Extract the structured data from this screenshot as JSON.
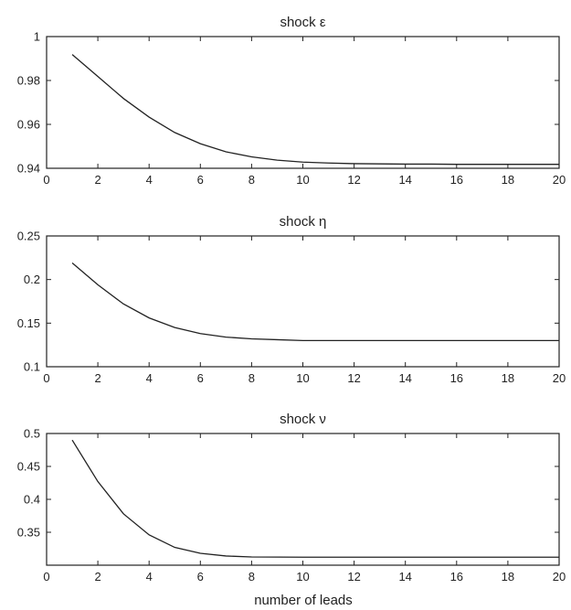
{
  "figure": {
    "xlabel": "number of leads"
  },
  "chart_data": [
    {
      "type": "line",
      "title": "shock ε",
      "xlabel": "",
      "ylabel": "",
      "xlim": [
        0,
        20
      ],
      "ylim": [
        0.94,
        1
      ],
      "xticks": [
        "0",
        "2",
        "4",
        "6",
        "8",
        "10",
        "12",
        "14",
        "16",
        "18",
        "20"
      ],
      "yticks": [
        "0.94",
        "0.96",
        "0.98",
        "1"
      ],
      "grid": false,
      "x": [
        1,
        2,
        3,
        4,
        5,
        6,
        7,
        8,
        9,
        10,
        11,
        12,
        13,
        14,
        15,
        16,
        17,
        18,
        19,
        20
      ],
      "series": [
        {
          "values": [
            0.9918,
            0.9818,
            0.9718,
            0.9633,
            0.9563,
            0.9512,
            0.9475,
            0.9452,
            0.9437,
            0.9428,
            0.9424,
            0.9421,
            0.942,
            0.9419,
            0.9419,
            0.9418,
            0.9418,
            0.9418,
            0.9418,
            0.9418
          ]
        }
      ]
    },
    {
      "type": "line",
      "title": "shock η",
      "xlabel": "",
      "ylabel": "",
      "xlim": [
        0,
        20
      ],
      "ylim": [
        0.1,
        0.25
      ],
      "xticks": [
        "0",
        "2",
        "4",
        "6",
        "8",
        "10",
        "12",
        "14",
        "16",
        "18",
        "20"
      ],
      "yticks": [
        "0.1",
        "0.15",
        "0.2",
        "0.25"
      ],
      "grid": false,
      "x": [
        1,
        2,
        3,
        4,
        5,
        6,
        7,
        8,
        9,
        10,
        11,
        12,
        13,
        14,
        15,
        16,
        17,
        18,
        19,
        20
      ],
      "series": [
        {
          "values": [
            0.219,
            0.194,
            0.172,
            0.156,
            0.145,
            0.138,
            0.134,
            0.132,
            0.131,
            0.13,
            0.13,
            0.13,
            0.13,
            0.13,
            0.13,
            0.13,
            0.13,
            0.13,
            0.13,
            0.13
          ]
        }
      ]
    },
    {
      "type": "line",
      "title": "shock ν",
      "xlabel": "number of leads",
      "ylabel": "",
      "xlim": [
        0,
        20
      ],
      "ylim": [
        0.3,
        0.5
      ],
      "xticks": [
        "0",
        "2",
        "4",
        "6",
        "8",
        "10",
        "12",
        "14",
        "16",
        "18",
        "20"
      ],
      "yticks": [
        "0.35",
        "0.4",
        "0.45",
        "0.5"
      ],
      "grid": false,
      "x": [
        1,
        2,
        3,
        4,
        5,
        6,
        7,
        8,
        9,
        10,
        11,
        12,
        13,
        14,
        15,
        16,
        17,
        18,
        19,
        20
      ],
      "series": [
        {
          "values": [
            0.49,
            0.427,
            0.378,
            0.346,
            0.327,
            0.318,
            0.314,
            0.3125,
            0.3123,
            0.3122,
            0.3122,
            0.3122,
            0.3122,
            0.3122,
            0.3122,
            0.3122,
            0.3122,
            0.3122,
            0.3122,
            0.3122
          ]
        }
      ]
    }
  ]
}
